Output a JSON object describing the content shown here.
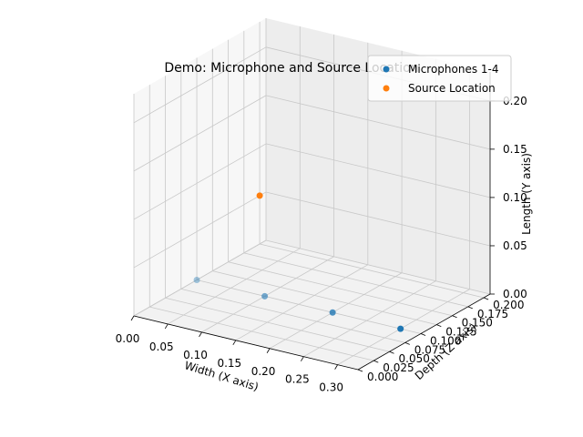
{
  "chart_data": {
    "type": "scatter",
    "projection": "3d",
    "title": "Demo: Microphone and Source Location",
    "xlabel": "Width (X axis)",
    "ylabel": "Depth (Z axis)",
    "zlabel": "Length (Y axis)",
    "xlim": [
      0.0,
      0.33
    ],
    "ylim": [
      0.0,
      0.21
    ],
    "zlim": [
      0.0,
      0.23
    ],
    "x_ticks": [
      "0.00",
      "0.05",
      "0.10",
      "0.15",
      "0.20",
      "0.25",
      "0.30"
    ],
    "y_ticks": [
      "0.000",
      "0.025",
      "0.050",
      "0.075",
      "0.100",
      "0.125",
      "0.150",
      "0.175",
      "0.200"
    ],
    "z_ticks": [
      "0.00",
      "0.05",
      "0.10",
      "0.15",
      "0.20"
    ],
    "grid": true,
    "legend_position": "top-right",
    "series": [
      {
        "name": "Microphones 1-4",
        "color": "#1f77b4",
        "points": [
          {
            "x": 0.0,
            "y": 0.1,
            "z": 0.0
          },
          {
            "x": 0.1,
            "y": 0.1,
            "z": 0.0
          },
          {
            "x": 0.2,
            "y": 0.1,
            "z": 0.0
          },
          {
            "x": 0.3,
            "y": 0.1,
            "z": 0.0
          }
        ]
      },
      {
        "name": "Source Location",
        "color": "#ff7f0e",
        "points": [
          {
            "x": 0.0,
            "y": 0.2,
            "z": 0.05
          }
        ]
      }
    ]
  }
}
